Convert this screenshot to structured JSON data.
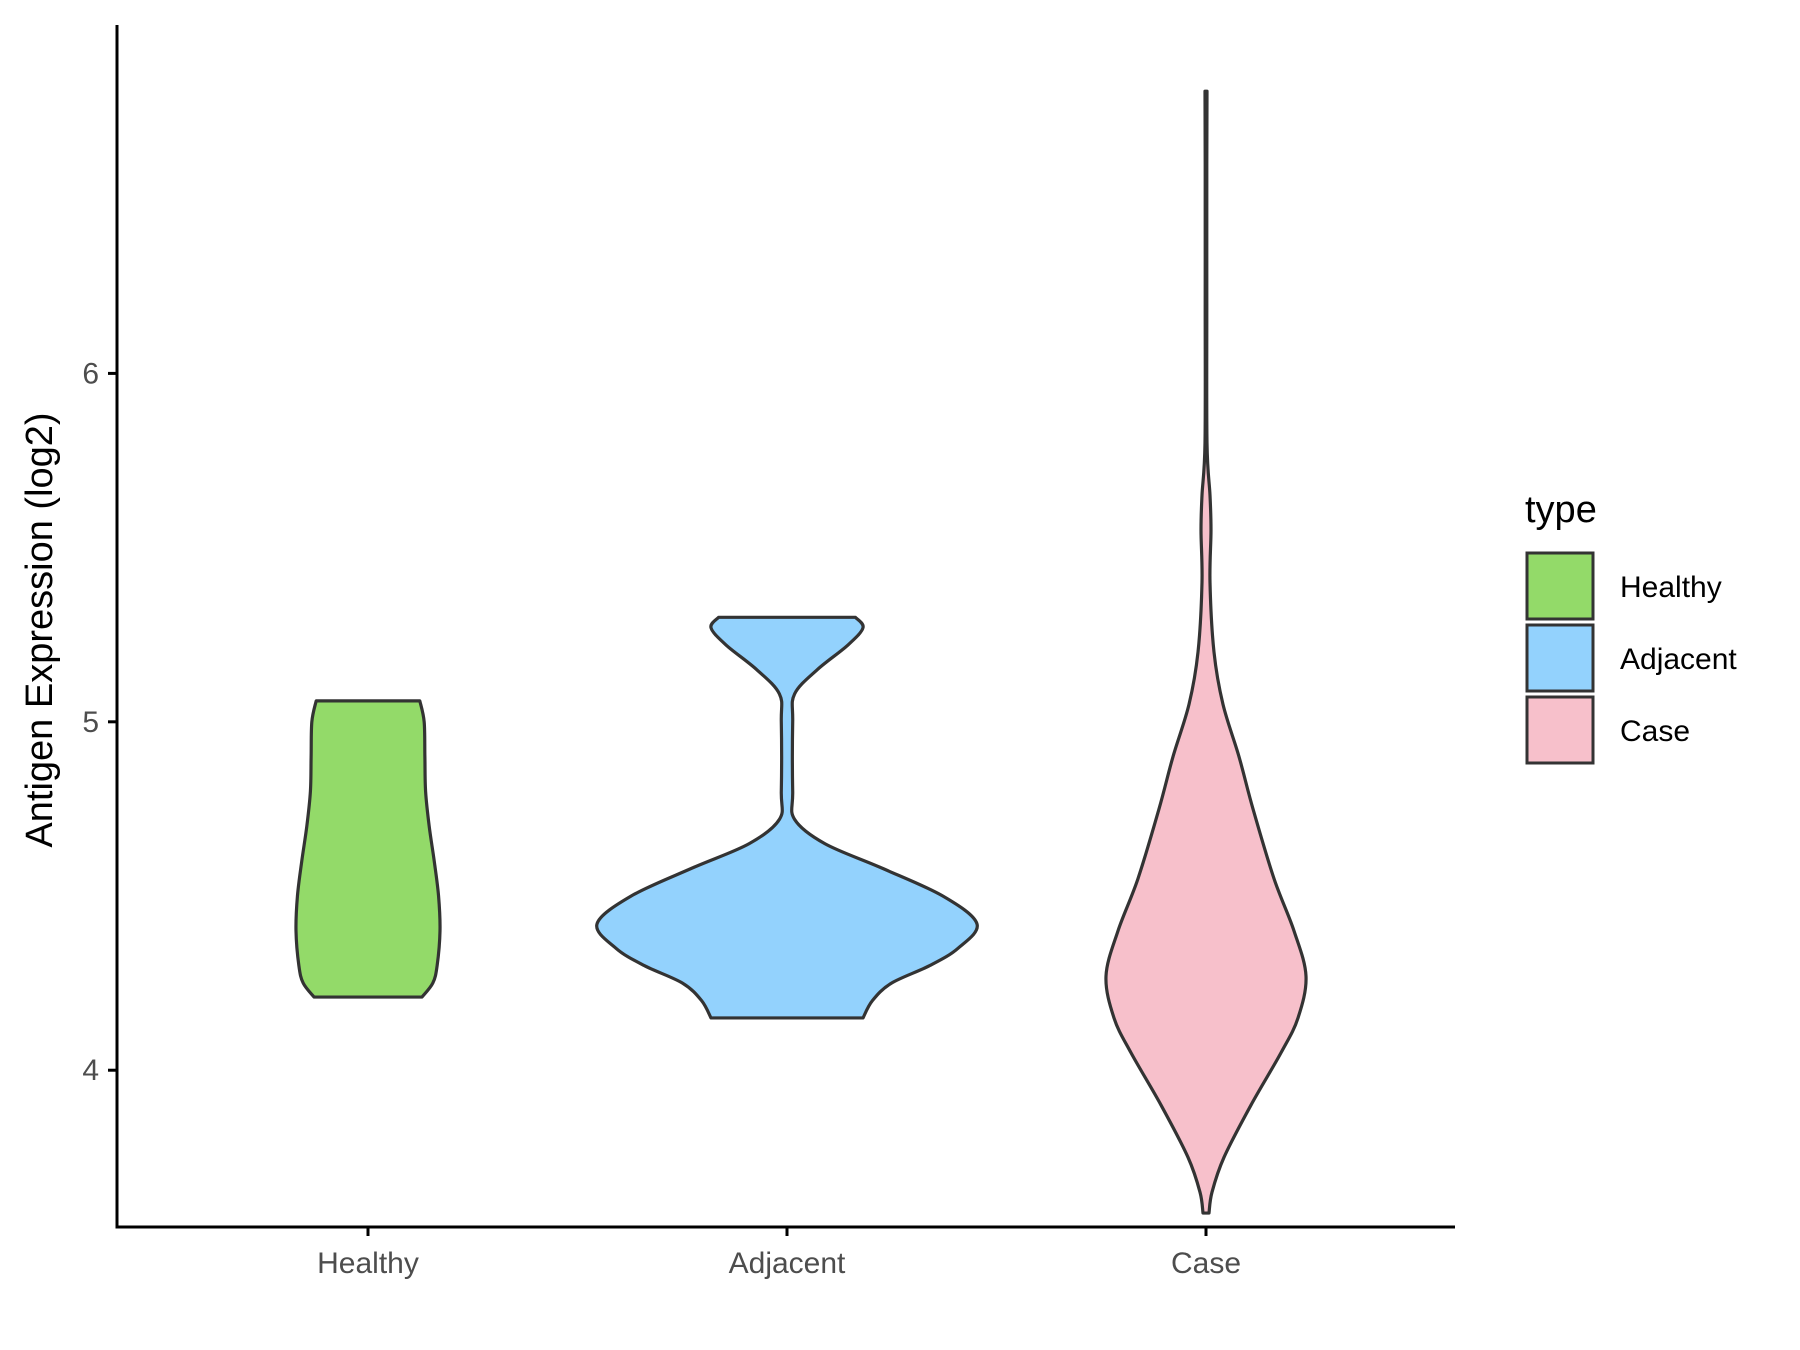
{
  "chart_data": {
    "type": "violin",
    "title": "",
    "xlabel": "",
    "ylabel": "Antigen Expression (log2)",
    "ylim": [
      3.55,
      7.0
    ],
    "yticks": [
      "4",
      "5",
      "6"
    ],
    "categories": [
      "Healthy",
      "Adjacent",
      "Case"
    ],
    "grid": false,
    "legend": {
      "title": "type",
      "placement": "right",
      "entries": [
        {
          "label": "Healthy",
          "color": "#93DA69"
        },
        {
          "label": "Adjacent",
          "color": "#93D2FD"
        },
        {
          "label": "Case",
          "color": "#F7C0CB"
        }
      ]
    },
    "series": [
      {
        "category": "Healthy",
        "color": "#93DA69",
        "min": 4.21,
        "max": 5.06,
        "density_profile": [
          [
            4.21,
            0.75
          ],
          [
            4.25,
            0.9
          ],
          [
            4.3,
            0.96
          ],
          [
            4.4,
            1.0
          ],
          [
            4.5,
            0.98
          ],
          [
            4.6,
            0.92
          ],
          [
            4.7,
            0.85
          ],
          [
            4.8,
            0.8
          ],
          [
            4.9,
            0.79
          ],
          [
            5.0,
            0.78
          ],
          [
            5.06,
            0.72
          ]
        ]
      },
      {
        "category": "Adjacent",
        "color": "#93D2FD",
        "min": 4.15,
        "max": 5.3,
        "density_profile": [
          [
            4.15,
            0.4
          ],
          [
            4.2,
            0.45
          ],
          [
            4.25,
            0.55
          ],
          [
            4.3,
            0.75
          ],
          [
            4.35,
            0.9
          ],
          [
            4.42,
            1.0
          ],
          [
            4.5,
            0.82
          ],
          [
            4.58,
            0.5
          ],
          [
            4.65,
            0.2
          ],
          [
            4.72,
            0.04
          ],
          [
            4.8,
            0.03
          ],
          [
            5.0,
            0.03
          ],
          [
            5.08,
            0.04
          ],
          [
            5.15,
            0.16
          ],
          [
            5.22,
            0.32
          ],
          [
            5.27,
            0.4
          ],
          [
            5.3,
            0.36
          ]
        ]
      },
      {
        "category": "Case",
        "color": "#F7C0CB",
        "min": 3.59,
        "max": 6.81,
        "density_profile": [
          [
            3.59,
            0.03
          ],
          [
            3.65,
            0.06
          ],
          [
            3.75,
            0.18
          ],
          [
            3.9,
            0.45
          ],
          [
            4.05,
            0.75
          ],
          [
            4.15,
            0.92
          ],
          [
            4.27,
            1.0
          ],
          [
            4.4,
            0.88
          ],
          [
            4.55,
            0.68
          ],
          [
            4.75,
            0.47
          ],
          [
            4.9,
            0.33
          ],
          [
            5.05,
            0.17
          ],
          [
            5.2,
            0.08
          ],
          [
            5.4,
            0.04
          ],
          [
            5.55,
            0.05
          ],
          [
            5.65,
            0.04
          ],
          [
            5.8,
            0.01
          ],
          [
            6.2,
            0.008
          ],
          [
            6.6,
            0.008
          ],
          [
            6.81,
            0.01
          ]
        ]
      }
    ]
  }
}
